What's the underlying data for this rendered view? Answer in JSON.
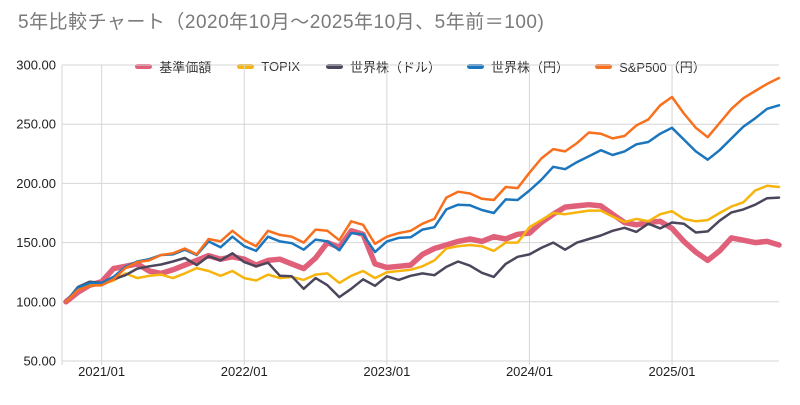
{
  "title": "5年比較チャート（2020年10月〜2025年10月、5年前＝100)",
  "style": {
    "title_color": "#7a7a7a",
    "axis_label_color": "#1f1f1f",
    "gridline_color": "#d6d6d6",
    "background": "#ffffff"
  },
  "chart_data": {
    "type": "line",
    "x_interval": "monthly",
    "x_range": [
      "2020/10",
      "2025/10"
    ],
    "x_labels": [
      "2020/10",
      "2020/11",
      "2020/12",
      "2021/01",
      "2021/02",
      "2021/03",
      "2021/04",
      "2021/05",
      "2021/06",
      "2021/07",
      "2021/08",
      "2021/09",
      "2021/10",
      "2021/11",
      "2021/12",
      "2022/01",
      "2022/02",
      "2022/03",
      "2022/04",
      "2022/05",
      "2022/06",
      "2022/07",
      "2022/08",
      "2022/09",
      "2022/10",
      "2022/11",
      "2022/12",
      "2023/01",
      "2023/02",
      "2023/03",
      "2023/04",
      "2023/05",
      "2023/06",
      "2023/07",
      "2023/08",
      "2023/09",
      "2023/10",
      "2023/11",
      "2023/12",
      "2024/01",
      "2024/02",
      "2024/03",
      "2024/04",
      "2024/05",
      "2024/06",
      "2024/07",
      "2024/08",
      "2024/09",
      "2024/10",
      "2024/11",
      "2024/12",
      "2025/01",
      "2025/02",
      "2025/03",
      "2025/04",
      "2025/05",
      "2025/06",
      "2025/07",
      "2025/08",
      "2025/09",
      "2025/10"
    ],
    "x_tick_labels": [
      "2021/01",
      "2022/01",
      "2023/01",
      "2024/01",
      "2025/01"
    ],
    "x_tick_indices": [
      3,
      15,
      27,
      39,
      51
    ],
    "y_ticks": [
      300,
      250,
      200,
      150,
      100,
      50
    ],
    "y_tick_labels": [
      "300.00",
      "250.00",
      "200.00",
      "150.00",
      "100.00",
      "50.00"
    ],
    "ylim": [
      50,
      300
    ],
    "grid": true,
    "legend_position": "top-center",
    "series": [
      {
        "name": "基準価額",
        "color": "#e0607a",
        "width": 5.5,
        "values": [
          100,
          108,
          114,
          117,
          128,
          130,
          132,
          126,
          124,
          127,
          131,
          135,
          139,
          136,
          138,
          136,
          131,
          135,
          136,
          132,
          128,
          137,
          150,
          146,
          160,
          157,
          132,
          129,
          130,
          131,
          140,
          145,
          148,
          151,
          153,
          151,
          155,
          153,
          157,
          158,
          167,
          174,
          180,
          181,
          182,
          181,
          174,
          167,
          165,
          167,
          168,
          162,
          151,
          142,
          135,
          143,
          154,
          152,
          150,
          151,
          148
        ]
      },
      {
        "name": "TOPIX",
        "color": "#f6b40d",
        "width": 2.5,
        "values": [
          100,
          111,
          114,
          114.5,
          118,
          124,
          120,
          122,
          123,
          120,
          124,
          128.5,
          126,
          122,
          126,
          120,
          118,
          123,
          120,
          121,
          118.5,
          123,
          124,
          116,
          122,
          126,
          120,
          125,
          126,
          127,
          130,
          135,
          145,
          147,
          148,
          147,
          143,
          150,
          150,
          163,
          169,
          175,
          174,
          175.5,
          177,
          177,
          172,
          167.5,
          170,
          168,
          174,
          176.5,
          170,
          168,
          169,
          175,
          180.5,
          184,
          194,
          198,
          197
        ]
      },
      {
        "name": "世界株（ドル）",
        "color": "#4c465c",
        "width": 2.5,
        "values": [
          100,
          112.5,
          117,
          116,
          119,
          122.5,
          128,
          130,
          131.5,
          134,
          137,
          131,
          138.5,
          135,
          141,
          133.5,
          130,
          133,
          122,
          121.5,
          111,
          120,
          114,
          104,
          111,
          119,
          113.5,
          121.5,
          118.5,
          122,
          124,
          122.5,
          129.5,
          134,
          130.5,
          124.5,
          121,
          132,
          138,
          140,
          145.5,
          150,
          144,
          150,
          153,
          156,
          160,
          162.5,
          159,
          166,
          162,
          167,
          166,
          158.5,
          159.5,
          168.5,
          175.5,
          178,
          182,
          187.5,
          188
        ]
      },
      {
        "name": "世界株（円）",
        "color": "#1c76bd",
        "width": 2.5,
        "values": [
          100,
          112,
          116,
          116,
          121,
          129.5,
          134,
          136,
          139.5,
          140,
          144,
          139.5,
          151,
          146,
          155,
          147,
          143,
          155,
          151,
          149.5,
          144,
          152.5,
          151,
          143.5,
          158,
          157,
          142,
          151,
          154,
          154.5,
          161,
          163,
          178,
          182,
          181.5,
          177.5,
          175,
          186.5,
          186,
          194,
          203,
          214,
          212,
          218,
          223,
          228,
          224,
          227,
          233,
          235,
          242,
          247,
          237,
          227,
          220,
          228,
          238,
          248,
          255,
          263,
          266
        ]
      },
      {
        "name": "S&P500（円）",
        "color": "#f8701d",
        "width": 2.5,
        "values": [
          100,
          110,
          113.5,
          114,
          119,
          128.5,
          133.5,
          135,
          139.5,
          141,
          145,
          140,
          153,
          151,
          160,
          152,
          147,
          160,
          156.5,
          155,
          150,
          161,
          160,
          152,
          168,
          165,
          149,
          155,
          158,
          160,
          166,
          170,
          188,
          193,
          191.5,
          187,
          186,
          197,
          196,
          209,
          221,
          229,
          227,
          234,
          243,
          242,
          238,
          240,
          249,
          254,
          266,
          273,
          259,
          247,
          239,
          251,
          263,
          272,
          278,
          284,
          289
        ]
      }
    ]
  }
}
